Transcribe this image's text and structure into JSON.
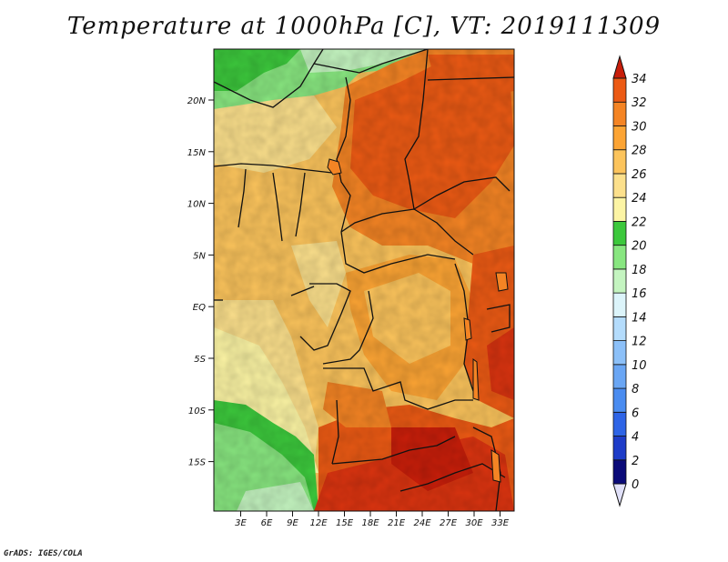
{
  "title": "Temperature at 1000hPa [C], VT: 2019111309",
  "footer": "GrADS: IGES/COLA",
  "map": {
    "lat_ticks": [
      "20N",
      "15N",
      "10N",
      "5N",
      "EQ",
      "5S",
      "10S",
      "15S"
    ],
    "lon_ticks": [
      "3E",
      "6E",
      "9E",
      "12E",
      "15E",
      "18E",
      "21E",
      "24E",
      "27E",
      "30E",
      "33E"
    ]
  },
  "colorbar": {
    "labels": [
      "34",
      "32",
      "30",
      "28",
      "26",
      "24",
      "22",
      "20",
      "18",
      "16",
      "14",
      "12",
      "10",
      "8",
      "6",
      "4",
      "2",
      "0"
    ],
    "colors": [
      "#0a0a78",
      "#1e3cc8",
      "#2e64e6",
      "#4a8cf0",
      "#6aa6f4",
      "#8cc0f8",
      "#b4dcfc",
      "#dcf4fa",
      "#c4f4c0",
      "#88e680",
      "#3cc83c",
      "#fcf4a4",
      "#fce08c",
      "#fcc45c",
      "#fca434",
      "#f48424",
      "#ec5a14",
      "#dc3410",
      "#c81e0a"
    ]
  }
}
